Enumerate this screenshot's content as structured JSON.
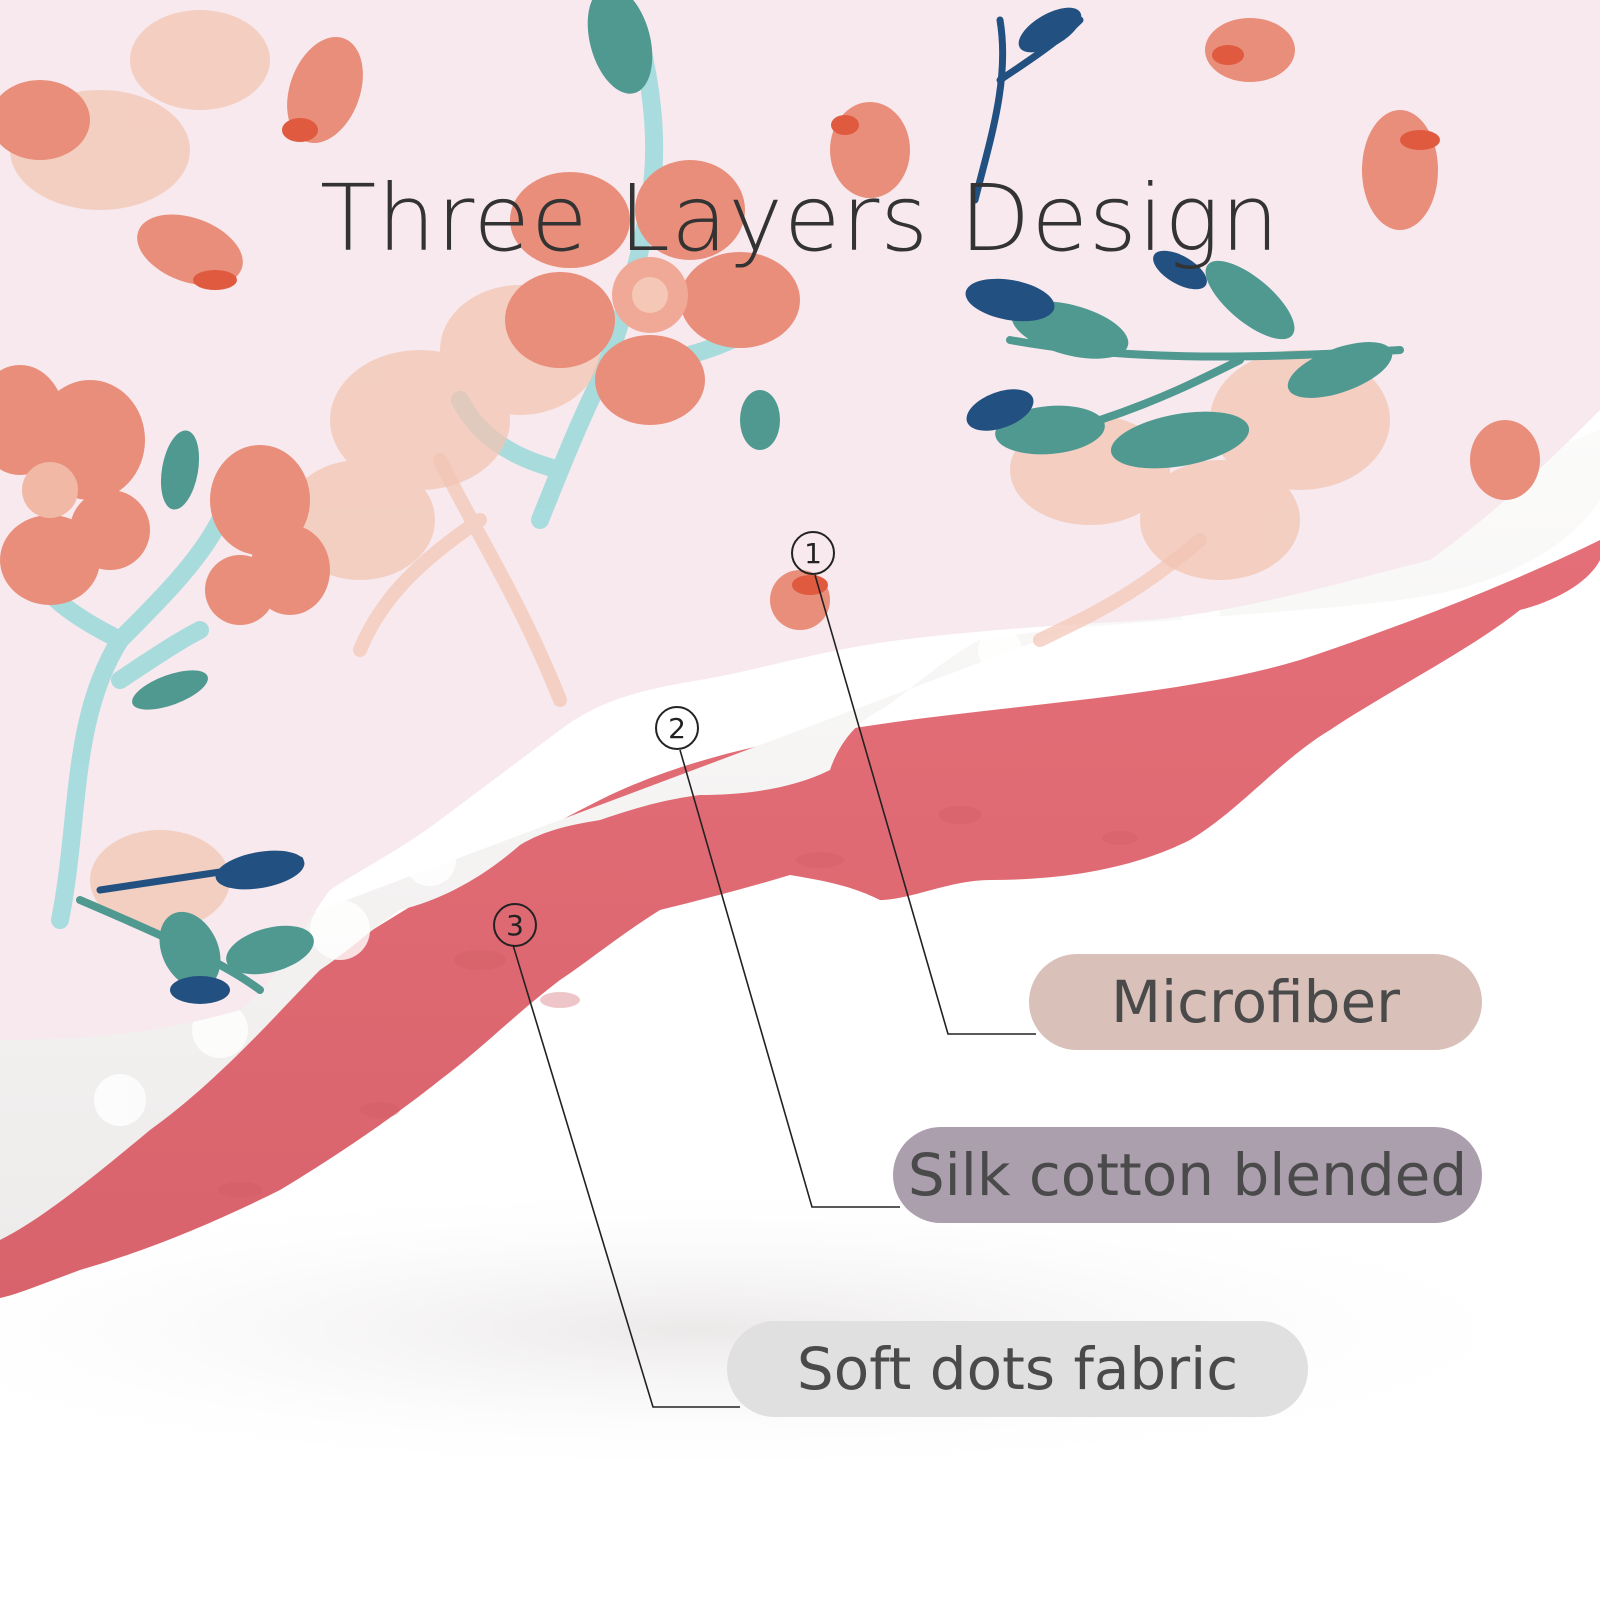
{
  "title": "Three Layers Design",
  "layers": [
    {
      "number": "1",
      "label": "Microfiber",
      "color": "#d9c1ba"
    },
    {
      "number": "2",
      "label": "Silk cotton blended",
      "color": "#ab9fae"
    },
    {
      "number": "3",
      "label": "Soft dots fabric",
      "color": "#e0e0e0"
    }
  ],
  "palette": {
    "print_background": "#f7e9ee",
    "blossom": "#e98e7a",
    "blossom_light": "#f2b8a6",
    "leaf_teal": "#4f9991",
    "leaf_navy": "#225081",
    "stem_mint": "#9fdadb",
    "padding_white": "#f6f5f3",
    "dots_fabric": "#e07078"
  }
}
